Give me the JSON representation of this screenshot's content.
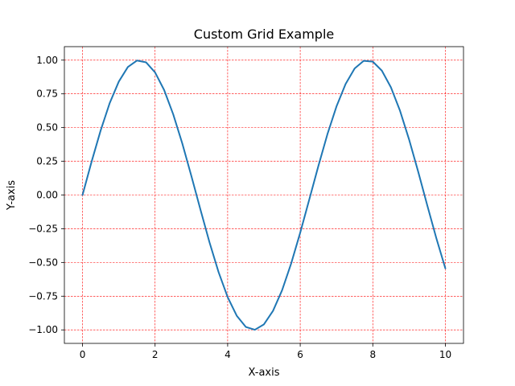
{
  "chart_data": {
    "type": "line",
    "title": "Custom Grid Example",
    "xlabel": "X-axis",
    "ylabel": "Y-axis",
    "xlim": [
      -0.5,
      10.5
    ],
    "ylim": [
      -1.1,
      1.1
    ],
    "x_ticks": [
      0,
      2,
      4,
      6,
      8,
      10
    ],
    "x_tick_labels": [
      "0",
      "2",
      "4",
      "6",
      "8",
      "10"
    ],
    "y_ticks": [
      -1.0,
      -0.75,
      -0.5,
      -0.25,
      0.0,
      0.25,
      0.5,
      0.75,
      1.0
    ],
    "y_tick_labels": [
      "−1.00",
      "−0.75",
      "−0.50",
      "−0.25",
      "0.00",
      "0.25",
      "0.50",
      "0.75",
      "1.00"
    ],
    "grid": true,
    "grid_style": "dashed",
    "grid_color": "#ff0000",
    "series": [
      {
        "color": "#1f77b4",
        "x": [
          0,
          0.25,
          0.5,
          0.75,
          1.0,
          1.25,
          1.5,
          1.75,
          2.0,
          2.25,
          2.5,
          2.75,
          3.0,
          3.25,
          3.5,
          3.75,
          4.0,
          4.25,
          4.5,
          4.75,
          5.0,
          5.25,
          5.5,
          5.75,
          6.0,
          6.25,
          6.5,
          6.75,
          7.0,
          7.25,
          7.5,
          7.75,
          8.0,
          8.25,
          8.5,
          8.75,
          9.0,
          9.25,
          9.5,
          9.75,
          10.0
        ],
        "y": [
          0.0,
          0.247,
          0.479,
          0.682,
          0.841,
          0.949,
          0.997,
          0.984,
          0.909,
          0.778,
          0.598,
          0.382,
          0.141,
          -0.108,
          -0.351,
          -0.572,
          -0.757,
          -0.895,
          -0.978,
          -0.999,
          -0.959,
          -0.859,
          -0.706,
          -0.508,
          -0.279,
          -0.033,
          0.215,
          0.451,
          0.657,
          0.823,
          0.938,
          0.995,
          0.989,
          0.922,
          0.798,
          0.625,
          0.412,
          0.174,
          -0.075,
          -0.319,
          -0.544
        ]
      }
    ]
  }
}
